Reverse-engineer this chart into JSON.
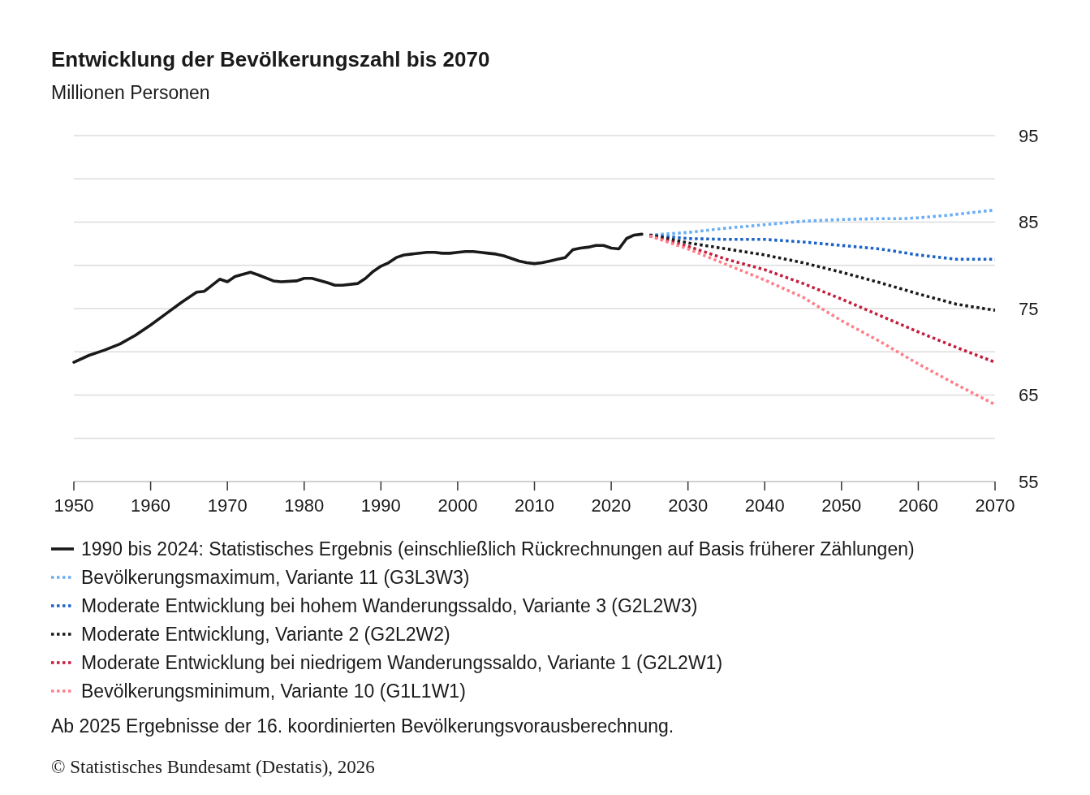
{
  "chart_data": {
    "type": "line",
    "title": "Entwicklung der Bevölkerungszahl bis 2070",
    "subtitle": "Millionen Personen",
    "xlim": [
      1950,
      2070
    ],
    "xticks": [
      1950,
      1960,
      1970,
      1980,
      1990,
      2000,
      2010,
      2020,
      2030,
      2040,
      2050,
      2060,
      2070
    ],
    "ylim": [
      55,
      95
    ],
    "yticks": [
      55,
      {
        "value": 60,
        "label": null
      },
      65,
      {
        "value": 70,
        "label": null
      },
      75,
      {
        "value": 80,
        "label": null
      },
      85,
      {
        "value": 90,
        "label": null
      },
      95
    ],
    "grid": "y",
    "legend": "bottom",
    "series": [
      {
        "name": "1990 bis 2024: Statistisches Ergebnis (einschließlich Rückrechnungen auf Basis früherer Zählungen)",
        "color": "#1a1a1a",
        "line_style": "solid",
        "x": [
          1950,
          1952,
          1954,
          1956,
          1958,
          1960,
          1962,
          1964,
          1966,
          1967,
          1969,
          1970,
          1971,
          1973,
          1974,
          1976,
          1977,
          1979,
          1980,
          1981,
          1983,
          1984,
          1985,
          1987,
          1988,
          1989,
          1990,
          1991,
          1992,
          1993,
          1994,
          1996,
          1997,
          1998,
          1999,
          2000,
          2001,
          2002,
          2003,
          2004,
          2005,
          2006,
          2007,
          2008,
          2009,
          2010,
          2011,
          2012,
          2013,
          2014,
          2015,
          2016,
          2017,
          2018,
          2019,
          2020,
          2021,
          2022,
          2023,
          2024
        ],
        "values": [
          68.8,
          69.6,
          70.2,
          70.9,
          71.9,
          73.1,
          74.4,
          75.7,
          76.9,
          77.0,
          78.4,
          78.1,
          78.7,
          79.2,
          78.9,
          78.2,
          78.1,
          78.2,
          78.5,
          78.5,
          78.0,
          77.7,
          77.7,
          77.9,
          78.5,
          79.3,
          79.9,
          80.3,
          80.9,
          81.2,
          81.3,
          81.5,
          81.5,
          81.4,
          81.4,
          81.5,
          81.6,
          81.6,
          81.5,
          81.4,
          81.3,
          81.1,
          80.8,
          80.5,
          80.3,
          80.2,
          80.3,
          80.5,
          80.7,
          80.9,
          81.8,
          82.0,
          82.1,
          82.3,
          82.3,
          82.0,
          81.9,
          83.1,
          83.5,
          83.6
        ]
      },
      {
        "name": "Bevölkerungsmaximum, Variante 11 (G3L3W3)",
        "color": "#6aaef5",
        "line_style": "dotted",
        "x": [
          2025,
          2030,
          2035,
          2040,
          2045,
          2050,
          2055,
          2058,
          2060,
          2064,
          2066,
          2070
        ],
        "values": [
          83.5,
          83.8,
          84.3,
          84.7,
          85.1,
          85.3,
          85.4,
          85.4,
          85.5,
          85.8,
          86.0,
          86.4
        ]
      },
      {
        "name": "Moderate Entwicklung bei hohem Wanderungssaldo, Variante 3 (G2L2W3)",
        "color": "#1c63c8",
        "line_style": "dotted",
        "x": [
          2025,
          2030,
          2035,
          2040,
          2045,
          2050,
          2055,
          2060,
          2065,
          2070
        ],
        "values": [
          83.5,
          83.1,
          83.0,
          83.0,
          82.7,
          82.3,
          81.9,
          81.2,
          80.7,
          80.7
        ]
      },
      {
        "name": "Moderate Entwicklung, Variante 2 (G2L2W2)",
        "color": "#1a1a1a",
        "line_style": "dotted",
        "x": [
          2025,
          2030,
          2035,
          2040,
          2045,
          2050,
          2055,
          2060,
          2065,
          2070
        ],
        "values": [
          83.5,
          82.6,
          81.9,
          81.2,
          80.3,
          79.2,
          78.0,
          76.7,
          75.5,
          74.8
        ]
      },
      {
        "name": "Moderate Entwicklung bei niedrigem Wanderungssaldo, Variante 1 (G2L2W1)",
        "color": "#c41e3f",
        "line_style": "dotted",
        "x": [
          2025,
          2030,
          2035,
          2040,
          2045,
          2050,
          2055,
          2060,
          2065,
          2070
        ],
        "values": [
          83.4,
          82.2,
          80.7,
          79.5,
          77.9,
          76.1,
          74.2,
          72.3,
          70.5,
          68.8
        ]
      },
      {
        "name": "Bevölkerungsminimum, Variante 10 (G1L1W1)",
        "color": "#ff7f8a",
        "line_style": "dotted",
        "x": [
          2025,
          2030,
          2035,
          2040,
          2045,
          2050,
          2055,
          2060,
          2065,
          2070
        ],
        "values": [
          83.4,
          81.9,
          80.1,
          78.3,
          76.3,
          73.6,
          71.2,
          68.6,
          66.2,
          63.9
        ]
      }
    ],
    "annotations": [
      "Ab 2025 Ergebnisse der 16. koordinierten Bevölkerungsvorausberechnung.",
      "© Statistisches Bundesamt (Destatis), 2026"
    ]
  }
}
